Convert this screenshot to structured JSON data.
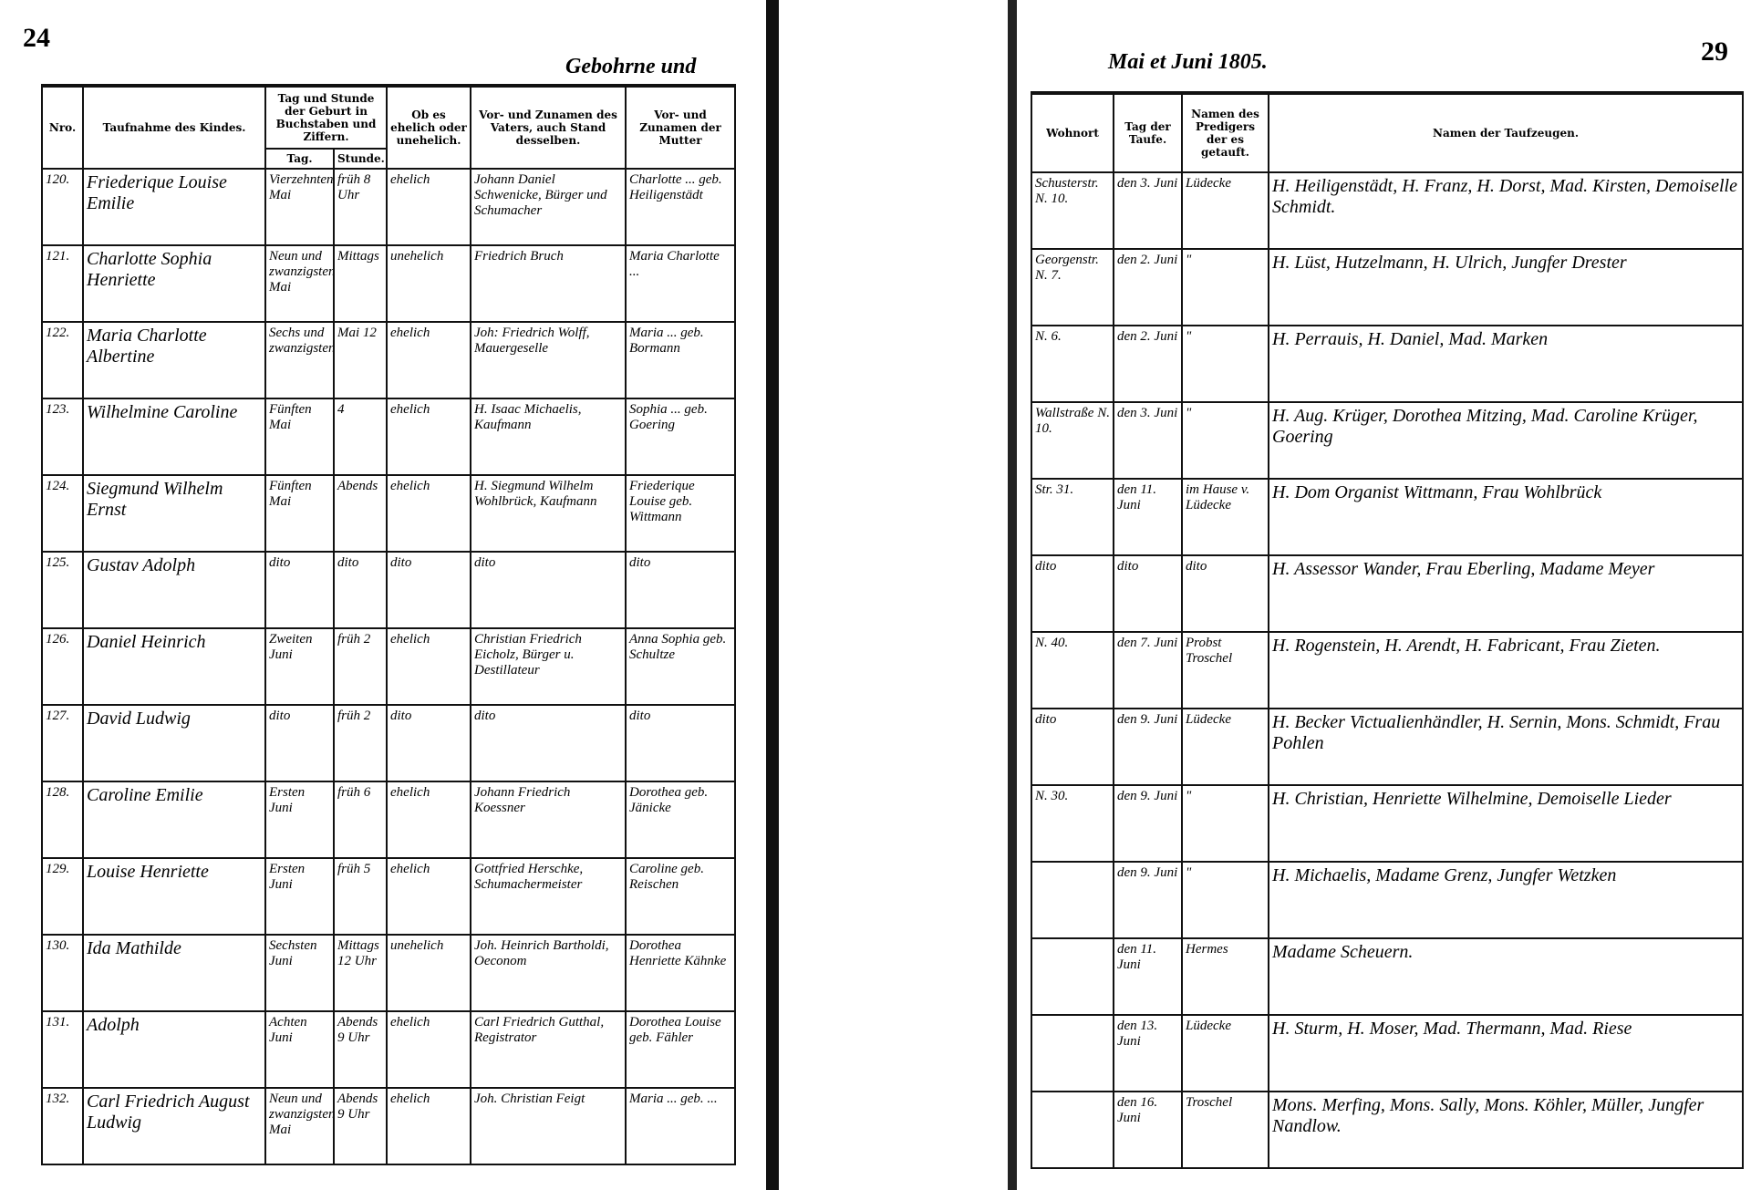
{
  "left_page": {
    "page_number": "24",
    "heading": "Gebohrne und",
    "columns": [
      "Nro.",
      "Taufnahme des Kindes.",
      "Tag und Stunde der Geburt in Buchstaben und Ziffern.",
      "Ob es ehelich oder unehelich.",
      "Vor- und Zunamen des Vaters, auch Stand desselben.",
      "Vor- und Zunamen der Mutter"
    ],
    "birth_subcolumns": [
      "Tag.",
      "Stunde."
    ],
    "rows": [
      [
        "120.",
        "Friederique Louise Emilie",
        "Vierzehnten Mai",
        "früh 8 Uhr",
        "ehelich",
        "Johann Daniel Schwenicke, Bürger und Schumacher",
        "Charlotte ... geb. Heiligenstädt"
      ],
      [
        "121.",
        "Charlotte Sophia Henriette",
        "Neun und zwanzigsten Mai",
        "Mittags",
        "unehelich",
        "Friedrich Bruch",
        "Maria Charlotte ..."
      ],
      [
        "122.",
        "Maria Charlotte Albertine",
        "Sechs und zwanzigsten",
        "Mai 12",
        "ehelich",
        "Joh: Friedrich Wolff, Mauergeselle",
        "Maria ... geb. Bormann"
      ],
      [
        "123.",
        "Wilhelmine Caroline",
        "Fünften Mai",
        "4",
        "ehelich",
        "H. Isaac Michaelis, Kaufmann",
        "Sophia ... geb. Goering"
      ],
      [
        "124.",
        "Siegmund Wilhelm Ernst",
        "Fünften Mai",
        "Abends",
        "ehelich",
        "H. Siegmund Wilhelm Wohlbrück, Kaufmann",
        "Friederique Louise geb. Wittmann"
      ],
      [
        "125.",
        "Gustav Adolph",
        "dito",
        "dito",
        "dito",
        "dito",
        "dito"
      ],
      [
        "126.",
        "Daniel Heinrich",
        "Zweiten Juni",
        "früh 2",
        "ehelich",
        "Christian Friedrich Eicholz, Bürger u. Destillateur",
        "Anna Sophia geb. Schultze"
      ],
      [
        "127.",
        "David Ludwig",
        "dito",
        "früh 2",
        "dito",
        "dito",
        "dito"
      ],
      [
        "128.",
        "Caroline Emilie",
        "Ersten Juni",
        "früh 6",
        "ehelich",
        "Johann Friedrich Koessner",
        "Dorothea geb. Jänicke"
      ],
      [
        "129.",
        "Louise Henriette",
        "Ersten Juni",
        "früh 5",
        "ehelich",
        "Gottfried Herschke, Schumachermeister",
        "Caroline geb. Reischen"
      ],
      [
        "130.",
        "Ida Mathilde",
        "Sechsten Juni",
        "Mittags 12 Uhr",
        "unehelich",
        "Joh. Heinrich Bartholdi, Oeconom",
        "Dorothea Henriette Kähnke"
      ],
      [
        "131.",
        "Adolph",
        "Achten Juni",
        "Abends 9 Uhr",
        "ehelich",
        "Carl Friedrich Gutthal, Registrator",
        "Dorothea Louise geb. Fähler"
      ],
      [
        "132.",
        "Carl Friedrich August Ludwig",
        "Neun und zwanzigsten Mai",
        "Abends 9 Uhr",
        "ehelich",
        "Joh. Christian Feigt",
        "Maria ... geb. ..."
      ]
    ]
  },
  "right_page": {
    "page_number": "29",
    "heading": "Mai et Juni 1805.",
    "columns": [
      "Wohnort",
      "Tag der Taufe.",
      "Namen des Predigers der es getauft.",
      "Namen der Taufzeugen."
    ],
    "rows": [
      [
        "Schusterstr. N. 10.",
        "den 3. Juni",
        "Lüdecke",
        "H. Heiligenstädt, H. Franz, H. Dorst, Mad. Kirsten, Demoiselle Schmidt."
      ],
      [
        "Georgenstr. N. 7.",
        "den 2. Juni",
        "\"",
        "H. Lüst, Hutzelmann, H. Ulrich, Jungfer Drester"
      ],
      [
        "N. 6.",
        "den 2. Juni",
        "\"",
        "H. Perrauis, H. Daniel, Mad. Marken"
      ],
      [
        "Wallstraße N. 10.",
        "den 3. Juni",
        "\"",
        "H. Aug. Krüger, Dorothea Mitzing, Mad. Caroline Krüger, Goering"
      ],
      [
        "Str. 31.",
        "den 11. Juni",
        "im Hause v. Lüdecke",
        "H. Dom Organist Wittmann, Frau Wohlbrück"
      ],
      [
        "dito",
        "dito",
        "dito",
        "H. Assessor Wander, Frau Eberling, Madame Meyer"
      ],
      [
        "N. 40.",
        "den 7. Juni",
        "Probst Troschel",
        "H. Rogenstein, H. Arendt, H. Fabricant, Frau Zieten."
      ],
      [
        "dito",
        "den 9. Juni",
        "Lüdecke",
        "H. Becker Victualienhändler, H. Sernin, Mons. Schmidt, Frau Pohlen"
      ],
      [
        "N. 30.",
        "den 9. Juni",
        "\"",
        "H. Christian, Henriette Wilhelmine, Demoiselle Lieder"
      ],
      [
        "",
        "den 9. Juni",
        "\"",
        "H. Michaelis, Madame Grenz, Jungfer Wetzken"
      ],
      [
        "",
        "den 11. Juni",
        "Hermes",
        "Madame Scheuern."
      ],
      [
        "",
        "den 13. Juni",
        "Lüdecke",
        "H. Sturm, H. Moser, Mad. Thermann, Mad. Riese"
      ],
      [
        "",
        "den 16. Juni",
        "Troschel",
        "Mons. Merfing, Mons. Sally, Mons. Köhler, Müller, Jungfer Nandlow."
      ]
    ]
  }
}
